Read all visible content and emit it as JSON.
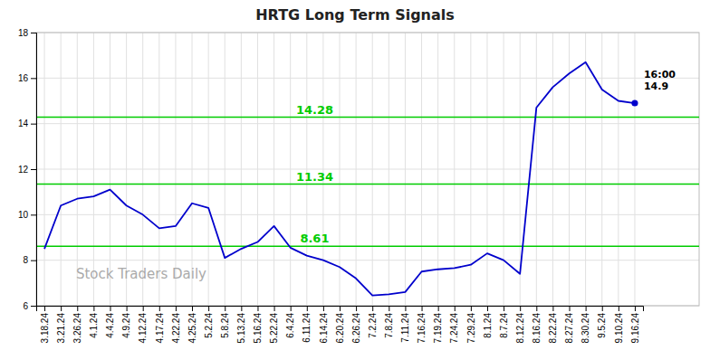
{
  "chart_data": {
    "type": "line",
    "title": "HRTG Long Term Signals",
    "categories": [
      "3.18.24",
      "3.21.24",
      "3.26.24",
      "4.1.24",
      "4.4.24",
      "4.9.24",
      "4.12.24",
      "4.17.24",
      "4.22.24",
      "4.25.24",
      "5.2.24",
      "5.8.24",
      "5.13.24",
      "5.16.24",
      "5.22.24",
      "6.4.24",
      "6.11.24",
      "6.14.24",
      "6.20.24",
      "6.26.24",
      "7.2.24",
      "7.8.24",
      "7.11.24",
      "7.16.24",
      "7.19.24",
      "7.24.24",
      "7.29.24",
      "8.1.24",
      "8.7.24",
      "8.12.24",
      "8.16.24",
      "8.22.24",
      "8.27.24",
      "8.30.24",
      "9.5.24",
      "9.10.24",
      "9.16.24"
    ],
    "values": [
      8.5,
      10.4,
      10.7,
      10.8,
      11.1,
      10.4,
      10.0,
      9.4,
      9.5,
      10.5,
      10.3,
      8.1,
      8.5,
      8.8,
      9.5,
      8.55,
      8.2,
      8.0,
      7.7,
      7.2,
      6.45,
      6.5,
      6.6,
      7.5,
      7.6,
      7.65,
      7.8,
      8.3,
      8.0,
      7.4,
      14.7,
      15.6,
      16.2,
      16.7,
      15.5,
      15.0,
      14.9
    ],
    "color": "#0000cc",
    "hlines": {
      "values": [
        8.61,
        11.34,
        14.28
      ],
      "color": "#00cc00"
    },
    "annotation": "16:00\n14.9",
    "watermark": "Stock Traders Daily",
    "ylim": [
      6,
      18
    ],
    "yticks": [
      6,
      8,
      10,
      12,
      14,
      16,
      18
    ],
    "grid": true
  }
}
